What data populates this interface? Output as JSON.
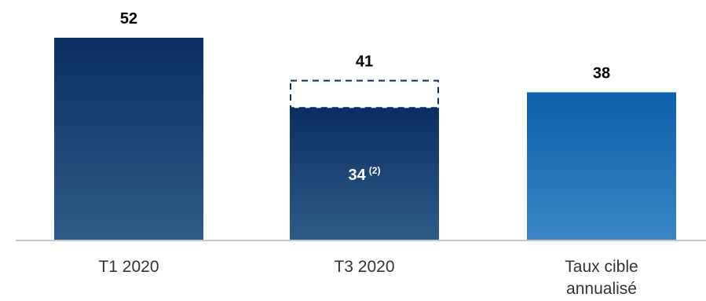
{
  "chart_data": {
    "type": "bar",
    "categories": [
      "T1 2020",
      "T3 2020",
      "Taux cible annualisé"
    ],
    "category_label_lines": [
      [
        "T1 2020"
      ],
      [
        "T3 2020"
      ],
      [
        "Taux cible",
        "annualisé"
      ]
    ],
    "values": [
      52,
      34,
      38
    ],
    "top_labels": [
      "52",
      "41",
      "38"
    ],
    "dashed_extension": {
      "category": "T3 2020",
      "from": 34,
      "to": 41
    },
    "inner_label": {
      "category": "T3 2020",
      "value": "34",
      "superscript": "(2)"
    },
    "ylim": [
      0,
      60
    ],
    "grid": false,
    "legend": "none",
    "colors": {
      "dark_top": "#0b2e63",
      "dark_bottom": "#2f5b86",
      "light_top": "#0d5fab",
      "light_bottom": "#3a86c4",
      "dashed": "#0b2e63",
      "baseline": "#c8c8c8",
      "value_text": "#000000",
      "inner_text": "#ffffff",
      "category_text": "#333333"
    }
  }
}
